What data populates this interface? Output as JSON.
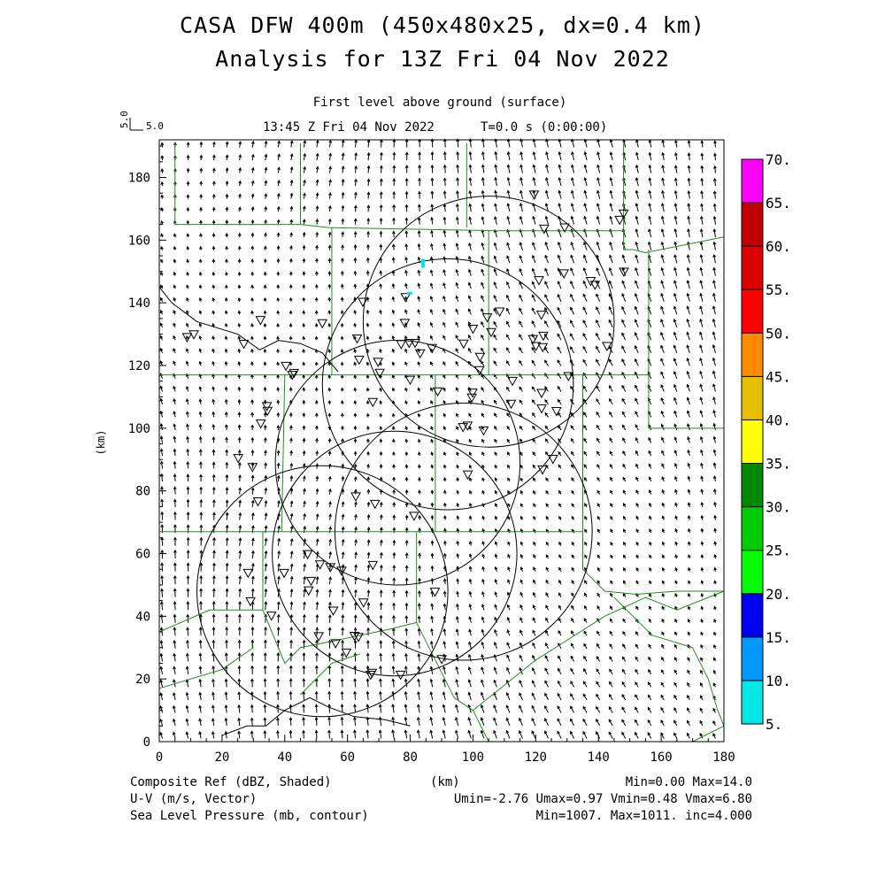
{
  "title": "CASA DFW 400m (450x480x25, dx=0.4 km)",
  "subtitle": "Analysis for 13Z Fri 04 Nov 2022",
  "level": "First level above ground (surface)",
  "valid_time": "13:45 Z Fri 04 Nov 2022",
  "time_step": "T=0.0 s (0:00:00)",
  "vector_scale": {
    "vertical": "5.0",
    "horizontal": "5.0"
  },
  "axes": {
    "xlabel": "(km)",
    "ylabel": "(km)",
    "x_ticks": [
      "0",
      "20",
      "40",
      "60",
      "80",
      "100",
      "120",
      "140",
      "160",
      "180"
    ],
    "y_ticks": [
      "0",
      "20",
      "40",
      "60",
      "80",
      "100",
      "120",
      "140",
      "160",
      "180"
    ],
    "xlim": [
      0,
      180
    ],
    "ylim": [
      0,
      192
    ]
  },
  "colorbar": {
    "labels": [
      "5.",
      "10.",
      "15.",
      "20.",
      "25.",
      "30.",
      "35.",
      "40.",
      "45.",
      "50.",
      "55.",
      "60.",
      "65.",
      "70."
    ],
    "colors": [
      "#00e8e8",
      "#0099ff",
      "#0000ee",
      "#00ff00",
      "#00cc00",
      "#008800",
      "#ffff00",
      "#e6c000",
      "#ff8c00",
      "#ff0000",
      "#dd0000",
      "#c00000",
      "#ff00ff"
    ]
  },
  "footer": {
    "left": [
      "Composite Ref (dBZ, Shaded)",
      "U-V (m/s, Vector)",
      "Sea Level Pressure (mb, contour)"
    ],
    "center": "(km)",
    "right": [
      "Min=0.00 Max=14.0",
      "Umin=-2.76 Umax=0.97 Vmin=0.48 Vmax=6.80",
      "Min=1007. Max=1011. inc=4.000"
    ]
  },
  "radar_rings": [
    {
      "cx": 52,
      "cy": 48,
      "r": 40
    },
    {
      "cx": 75,
      "cy": 60,
      "r": 39
    },
    {
      "cx": 76,
      "cy": 89,
      "r": 39
    },
    {
      "cx": 97,
      "cy": 67,
      "r": 41
    },
    {
      "cx": 92,
      "cy": 114,
      "r": 40
    },
    {
      "cx": 105,
      "cy": 134,
      "r": 40
    }
  ],
  "station_count": 92,
  "echo_color": "#00e8e8"
}
